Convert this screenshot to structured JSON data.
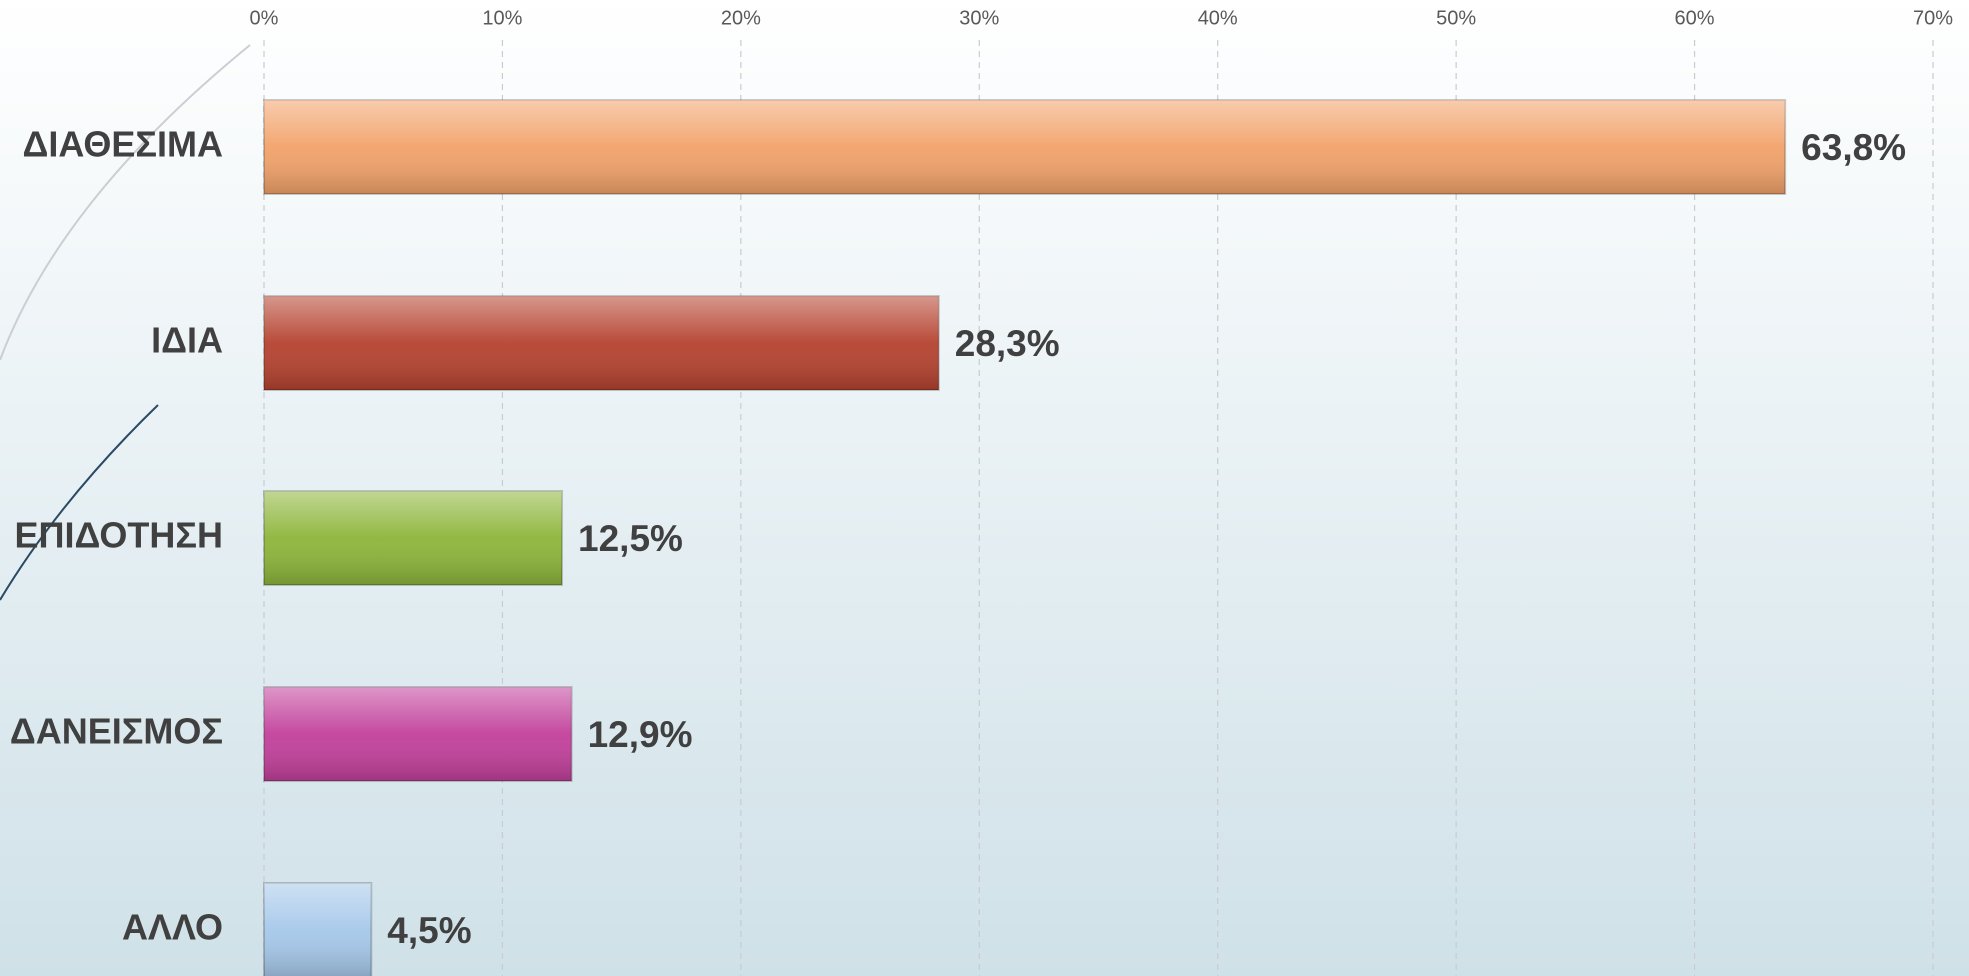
{
  "chart_data": {
    "type": "hbar",
    "categories": [
      "ΔΙΑΘΕΣΙΜΑ",
      "ΙΔΙΑ",
      "ΕΠΙΔΟΤΗΣΗ",
      "ΔΑΝΕΙΣΜΟΣ",
      "ΑΛΛΟ"
    ],
    "values": [
      63.8,
      28.3,
      12.5,
      12.9,
      4.5
    ],
    "value_labels": [
      "63,8%",
      "28,3%",
      "12,5%",
      "12,9%",
      "4,5%"
    ],
    "colors": [
      "#f2a26a",
      "#b5422f",
      "#8db53a",
      "#c2409b",
      "#a6c8ea"
    ],
    "xlim": [
      0,
      70
    ],
    "xticks": [
      {
        "value": 0,
        "label": "0%"
      },
      {
        "value": 10,
        "label": "10%"
      },
      {
        "value": 20,
        "label": "20%"
      },
      {
        "value": 30,
        "label": "30%"
      },
      {
        "value": 40,
        "label": "40%"
      },
      {
        "value": 50,
        "label": "50%"
      },
      {
        "value": 60,
        "label": "60%"
      },
      {
        "value": 70,
        "label": "70%"
      }
    ],
    "grid": true
  }
}
